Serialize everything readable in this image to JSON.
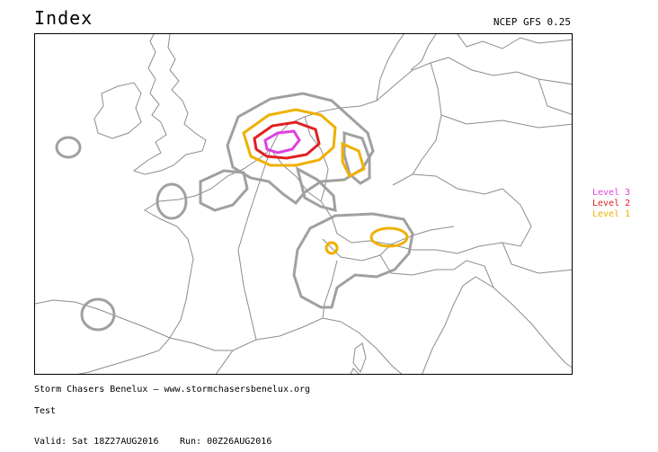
{
  "header": {
    "title": "Index",
    "model": "NCEP GFS 0.25"
  },
  "legend": {
    "items": [
      {
        "label": "Level 3",
        "color": "#e040e0"
      },
      {
        "label": "Level 2",
        "color": "#e02020"
      },
      {
        "label": "Level 1",
        "color": "#f0b000"
      }
    ]
  },
  "footer": {
    "credit": "Storm Chasers Benelux — www.stormchasersbenelux.org",
    "note": "Test",
    "valid": "Valid: Sat 18Z27AUG2016",
    "run": "Run: 00Z26AUG2016"
  },
  "map": {
    "colors": {
      "coast": "#8c8c8c",
      "contour_gray": "#a0a0a0",
      "level1": "#f0b000",
      "level2": "#e02020",
      "level3": "#e040e0"
    }
  }
}
